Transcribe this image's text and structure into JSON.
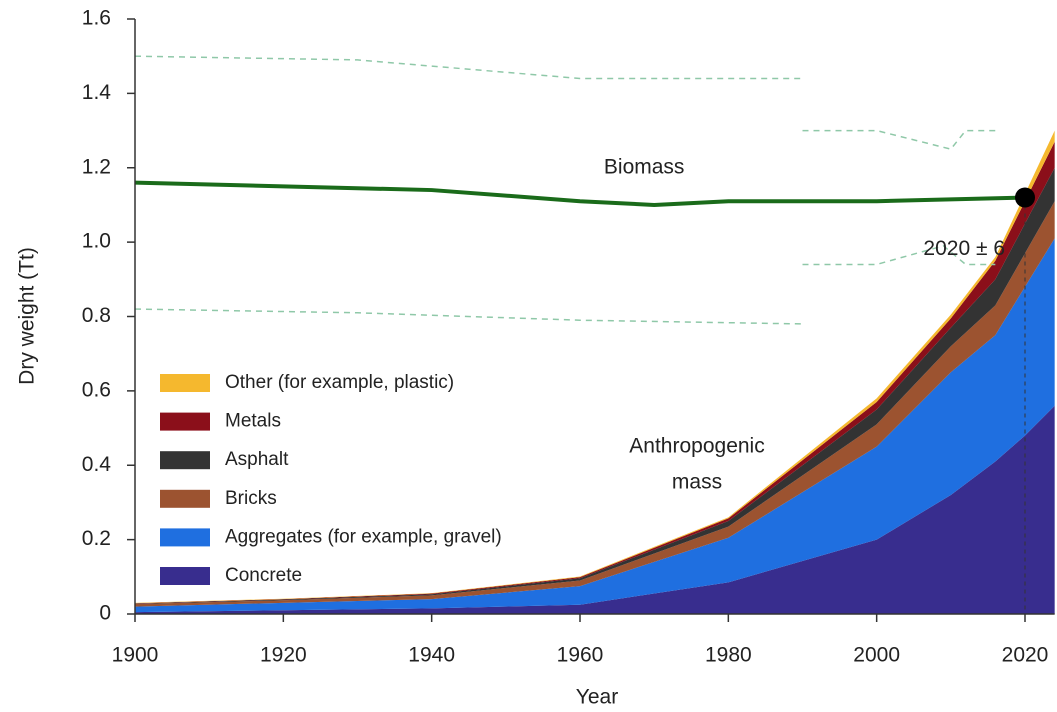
{
  "chart_data": {
    "type": "area",
    "stacked": true,
    "xlabel": "Year",
    "ylabel": "Dry weight (Tt)",
    "xlim": [
      1900,
      2024
    ],
    "ylim": [
      0,
      1.6
    ],
    "xticks": [
      1900,
      1920,
      1940,
      1960,
      1980,
      2000,
      2020
    ],
    "yticks": [
      0,
      0.2,
      0.4,
      0.6,
      0.8,
      {
        "value": 1,
        "label": "1.0"
      },
      1.2,
      1.4,
      1.6
    ],
    "x": [
      1900,
      1920,
      1940,
      1960,
      1980,
      2000,
      2010,
      2016,
      2020,
      2024
    ],
    "series": [
      {
        "name": "Concrete",
        "color": "#382d8e",
        "values": [
          0.005,
          0.01,
          0.015,
          0.025,
          0.085,
          0.2,
          0.32,
          0.41,
          0.48,
          0.56
        ]
      },
      {
        "name": "Aggregates (for example, gravel)",
        "color": "#1f6fe0",
        "values": [
          0.015,
          0.02,
          0.025,
          0.05,
          0.12,
          0.25,
          0.33,
          0.34,
          0.4,
          0.45
        ]
      },
      {
        "name": "Bricks",
        "color": "#9c5330",
        "values": [
          0.007,
          0.007,
          0.01,
          0.015,
          0.03,
          0.06,
          0.07,
          0.08,
          0.09,
          0.1
        ]
      },
      {
        "name": "Asphalt",
        "color": "#333333",
        "values": [
          0.001,
          0.002,
          0.003,
          0.006,
          0.015,
          0.04,
          0.05,
          0.07,
          0.08,
          0.09
        ]
      },
      {
        "name": "Metals",
        "color": "#8b0f1a",
        "values": [
          0.001,
          0.001,
          0.002,
          0.003,
          0.007,
          0.02,
          0.025,
          0.05,
          0.06,
          0.07
        ]
      },
      {
        "name": "Other (for example, plastic)",
        "color": "#f5b82e",
        "values": [
          0.001,
          0.001,
          0.001,
          0.002,
          0.003,
          0.01,
          0.01,
          0.01,
          0.02,
          0.03
        ]
      }
    ],
    "biomass": {
      "label": "Biomass",
      "color": "#1a6b1a",
      "x": [
        1900,
        1920,
        1940,
        1960,
        1970,
        1980,
        2000,
        2020
      ],
      "values": [
        1.16,
        1.15,
        1.14,
        1.11,
        1.1,
        1.11,
        1.11,
        1.12
      ]
    },
    "biomass_bounds": [
      {
        "x": [
          1900,
          1930,
          1960,
          1990
        ],
        "values": [
          1.5,
          1.49,
          1.44,
          1.44
        ]
      },
      {
        "x": [
          1900,
          1930,
          1960,
          1990
        ],
        "values": [
          0.82,
          0.81,
          0.79,
          0.78
        ]
      },
      {
        "x": [
          1990,
          2000,
          2010,
          2012,
          2016
        ],
        "values": [
          1.3,
          1.3,
          1.25,
          1.3,
          1.3
        ]
      },
      {
        "x": [
          1990,
          2000,
          2009,
          2012,
          2016
        ],
        "values": [
          0.94,
          0.94,
          0.99,
          0.94,
          0.94
        ]
      }
    ],
    "crossover": {
      "label": "2020 ± 6",
      "x": 2020,
      "y": 1.12
    },
    "area_label": [
      "Anthropogenic",
      "mass"
    ]
  }
}
